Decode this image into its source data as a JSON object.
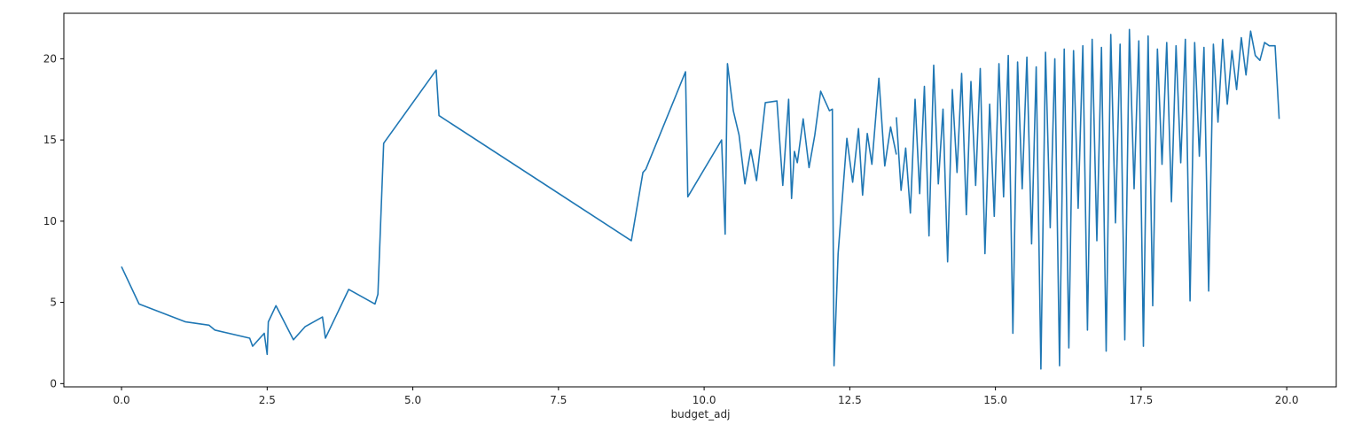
{
  "chart_data": {
    "type": "line",
    "title": "",
    "xlabel": "budget_adj",
    "ylabel": "",
    "xlim": [
      -0.99,
      20.85
    ],
    "ylim": [
      -0.2,
      22.8
    ],
    "x_ticks": [
      0.0,
      2.5,
      5.0,
      7.5,
      10.0,
      12.5,
      15.0,
      17.5,
      20.0
    ],
    "x_tick_labels": [
      "0.0",
      "2.5",
      "5.0",
      "7.5",
      "10.0",
      "12.5",
      "15.0",
      "17.5",
      "20.0"
    ],
    "y_ticks": [
      0,
      5,
      10,
      15,
      20
    ],
    "y_tick_labels": [
      "0",
      "5",
      "10",
      "15",
      "20"
    ],
    "grid": false,
    "legend": "none",
    "line_color": "#1f77b4",
    "series": [
      {
        "x": [
          0.0,
          0.3,
          1.1,
          1.5,
          1.6,
          2.2,
          2.25,
          2.45,
          2.5,
          2.52,
          2.65,
          2.95,
          3.15,
          3.45,
          3.5,
          3.9,
          4.35,
          4.4,
          4.5,
          5.4,
          5.45,
          8.75,
          8.95,
          9.0,
          9.68,
          9.72,
          10.3,
          10.36,
          10.4,
          10.5,
          10.6,
          10.7,
          10.8,
          10.9,
          11.05,
          11.25,
          11.35,
          11.45,
          11.5,
          11.55,
          11.6,
          11.7,
          11.8,
          11.9,
          12.0,
          12.15,
          12.2,
          12.23,
          12.3,
          12.45,
          12.55,
          12.65,
          12.72,
          12.8,
          12.88,
          13.0,
          13.1,
          13.2,
          13.3
        ],
        "y": [
          7.2,
          4.9,
          3.8,
          3.6,
          3.3,
          2.8,
          2.3,
          3.1,
          1.8,
          3.8,
          4.8,
          2.7,
          3.5,
          4.1,
          2.8,
          5.8,
          4.9,
          5.5,
          14.8,
          19.3,
          16.5,
          8.8,
          13.0,
          13.2,
          19.2,
          11.5,
          15.0,
          9.2,
          19.7,
          16.8,
          15.3,
          12.3,
          14.4,
          12.5,
          17.3,
          17.4,
          12.2,
          17.5,
          11.4,
          14.3,
          13.6,
          16.3,
          13.3,
          15.3,
          18.0,
          16.8,
          16.9,
          1.1,
          8.0,
          15.1,
          12.4,
          15.7,
          11.6,
          15.4,
          13.5,
          18.8,
          13.4,
          15.8,
          14.1
        ]
      },
      {
        "x": [
          13.3,
          13.38,
          13.46,
          13.54,
          13.62,
          13.7,
          13.78,
          13.86,
          13.94,
          14.02,
          14.1,
          14.18,
          14.26,
          14.34,
          14.42,
          14.5,
          14.58,
          14.66,
          14.74,
          14.82,
          14.9,
          14.98,
          15.06,
          15.14,
          15.22,
          15.3,
          15.38,
          15.46,
          15.54,
          15.62,
          15.7,
          15.78,
          15.86,
          15.94,
          16.02,
          16.1,
          16.18,
          16.26,
          16.34,
          16.42,
          16.5,
          16.58,
          16.66,
          16.74,
          16.82,
          16.9,
          16.98,
          17.06,
          17.14,
          17.22,
          17.3,
          17.38,
          17.46,
          17.54,
          17.62,
          17.7,
          17.78,
          17.86,
          17.94,
          18.02,
          18.1,
          18.18,
          18.26,
          18.34,
          18.42,
          18.5,
          18.58,
          18.66,
          18.74,
          18.82,
          18.9,
          18.98,
          19.06,
          19.14,
          19.22,
          19.3,
          19.38,
          19.46,
          19.54,
          19.62,
          19.7,
          19.8,
          19.87
        ],
        "y": [
          16.4,
          11.9,
          14.5,
          10.5,
          17.5,
          11.7,
          18.3,
          9.1,
          19.6,
          12.3,
          16.9,
          7.5,
          18.1,
          13.0,
          19.1,
          10.4,
          18.6,
          12.2,
          19.4,
          8.0,
          17.2,
          10.3,
          19.7,
          11.5,
          20.2,
          3.1,
          19.8,
          12.0,
          20.1,
          8.6,
          19.5,
          0.9,
          20.4,
          9.6,
          20.0,
          1.1,
          20.6,
          2.2,
          20.5,
          10.8,
          20.8,
          3.3,
          21.2,
          8.8,
          20.7,
          2.0,
          21.5,
          9.9,
          20.9,
          2.7,
          21.8,
          12.0,
          21.1,
          2.3,
          21.4,
          4.8,
          20.6,
          13.5,
          21.0,
          11.2,
          20.8,
          13.6,
          21.2,
          5.1,
          21.0,
          14.0,
          20.7,
          5.7,
          20.9,
          16.1,
          21.2,
          17.2,
          20.5,
          18.1,
          21.3,
          19.0,
          21.7,
          20.2,
          19.9,
          21.0,
          20.8,
          20.8,
          16.3
        ]
      }
    ]
  }
}
